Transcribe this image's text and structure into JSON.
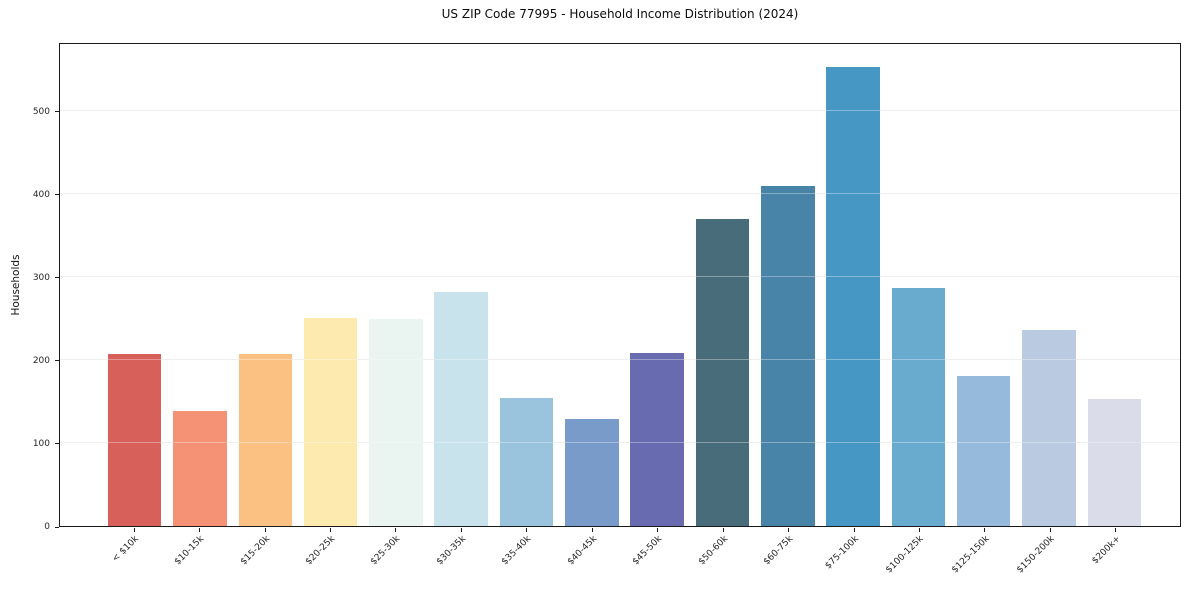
{
  "chart_data": {
    "type": "bar",
    "title": "US ZIP Code 77995 - Household Income Distribution (2024)",
    "xlabel": "",
    "ylabel": "Households",
    "categories": [
      "< $10k",
      "$10-15k",
      "$15-20k",
      "$20-25k",
      "$25-30k",
      "$30-35k",
      "$35-40k",
      "$40-45k",
      "$45-50k",
      "$50-60k",
      "$60-75k",
      "$75-100k",
      "$100-125k",
      "$125-150k",
      "$150-200k",
      "$200k+"
    ],
    "values": [
      207,
      139,
      207,
      250,
      249,
      282,
      154,
      129,
      208,
      370,
      410,
      553,
      287,
      181,
      236,
      153
    ],
    "bar_colors": [
      "#d5544e",
      "#f4896a",
      "#fabc7a",
      "#fde8a9",
      "#e8f4f1",
      "#c4e1eb",
      "#92bedb",
      "#6e93c6",
      "#5d60a9",
      "#3a616f",
      "#3a7aa1",
      "#398fc1",
      "#5da5ca",
      "#8eb5d9",
      "#b4c6df",
      "#d7dae7"
    ],
    "yticks": [
      0,
      100,
      200,
      300,
      400,
      500
    ],
    "ylim": [
      0,
      583
    ],
    "grid": "horizontal",
    "legend": "none",
    "background_color": "#ffffff",
    "grid_color": "#e7e7e7",
    "spine_color": "#1a1a1a"
  }
}
